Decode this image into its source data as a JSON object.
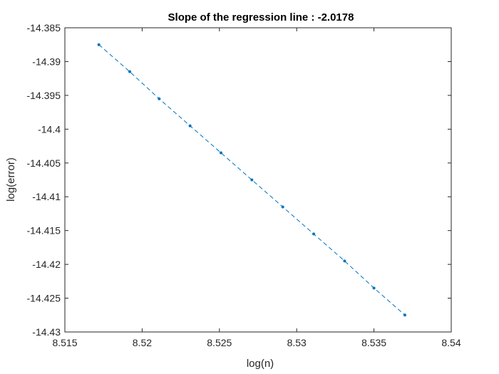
{
  "chart_data": {
    "type": "line",
    "title": "Slope of the regression line : -2.0178",
    "xlabel": "log(n)",
    "ylabel": "log(error)",
    "xlim": [
      8.515,
      8.54
    ],
    "ylim": [
      -14.43,
      -14.385
    ],
    "xticks": [
      "8.515",
      "8.52",
      "8.525",
      "8.53",
      "8.535",
      "8.54"
    ],
    "yticks": [
      "-14.385",
      "-14.39",
      "-14.395",
      "-14.4",
      "-14.405",
      "-14.41",
      "-14.415",
      "-14.42",
      "-14.425",
      "-14.43"
    ],
    "grid": false,
    "line_style": "dashed",
    "marker": "dot",
    "color": "#0072BD",
    "series": [
      {
        "x": [
          8.5172,
          8.5192,
          8.5211,
          8.5231,
          8.5251,
          8.5271,
          8.5291,
          8.5311,
          8.5331,
          8.535,
          8.537
        ],
        "y": [
          -14.3875,
          -14.3915,
          -14.3955,
          -14.3995,
          -14.4035,
          -14.4075,
          -14.4115,
          -14.4155,
          -14.4195,
          -14.4235,
          -14.4275
        ]
      }
    ]
  }
}
